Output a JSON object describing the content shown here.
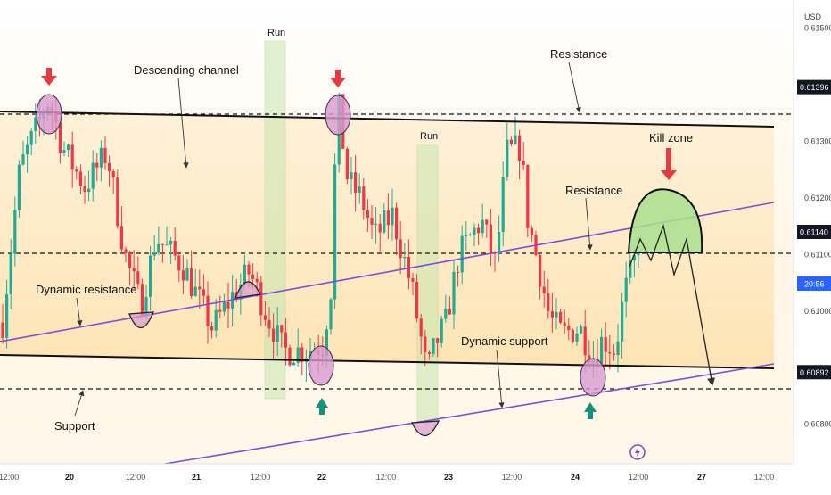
{
  "chart_data": {
    "type": "candlestick",
    "currency_label": "USD",
    "ylim": [
      0.6073,
      0.6155
    ],
    "y_ticks": [
      0.615,
      0.613,
      0.612,
      0.611,
      0.61,
      0.608
    ],
    "highlighted_levels": [
      {
        "value": 0.61396,
        "label": "0.61396"
      },
      {
        "value": 0.6114,
        "label": "0.61140"
      },
      {
        "value": 0.60892,
        "label": "0.60892"
      }
    ],
    "current_price_tag": "20:56",
    "x_ticks": [
      "12:00",
      "20",
      "12:00",
      "21",
      "12:00",
      "22",
      "12:00",
      "23",
      "12:00",
      "24",
      "12:00",
      "27",
      "12:00"
    ],
    "colors": {
      "bull": "#22ab94",
      "bear": "#f23645",
      "channel_fill": "#fdebc6",
      "trendline": "#7b4fd6",
      "circle_fill": "#d79ad0",
      "run_fill": "#c8e6b0",
      "kill_zone_fill": "#a9e08e",
      "arrow_down": "#e53a3f",
      "arrow_up": "#16917c",
      "price_tag": "#2962ff"
    },
    "annotations": {
      "descending_channel": "Descending channel",
      "run_1": "Run",
      "run_2": "Run",
      "resistance_top": "Resistance",
      "resistance_mid": "Resistance",
      "kill_zone": "Kill zone",
      "dynamic_resistance": "Dynamic resistance",
      "dynamic_support": "Dynamic support",
      "support": "Support"
    }
  }
}
